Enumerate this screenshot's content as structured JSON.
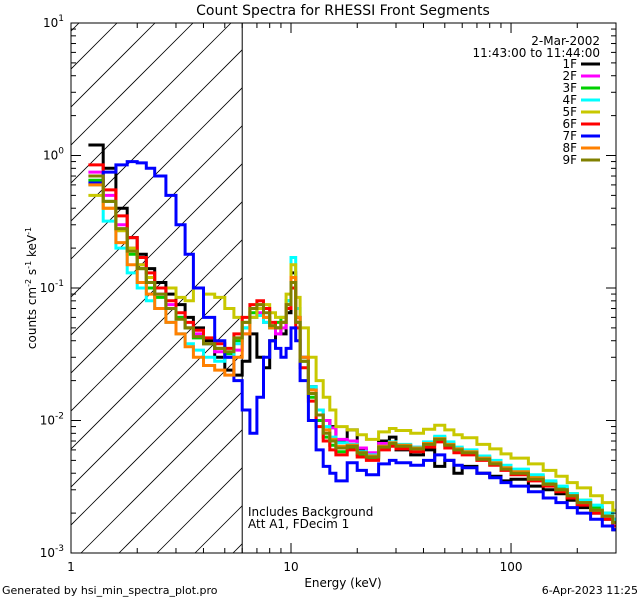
{
  "chart_data": {
    "type": "line",
    "title": "Count Spectra for RHESSI Front Segments",
    "xlabel": "Energy (keV)",
    "ylabel_main": "counts cm",
    "ylabel_exp1": "-2",
    "ylabel_mid": " s",
    "ylabel_exp2": "-1",
    "ylabel_end": " keV",
    "ylabel_exp3": "-1",
    "xscale": "log",
    "yscale": "log",
    "xlim": [
      1,
      300
    ],
    "ylim": [
      0.001,
      10
    ],
    "x_ticks": [
      {
        "value": 1,
        "label": "1"
      },
      {
        "value": 10,
        "label": "10"
      },
      {
        "value": 100,
        "label": "100"
      }
    ],
    "y_ticks": [
      {
        "value": 0.001,
        "base": "10",
        "exp": "-3"
      },
      {
        "value": 0.01,
        "base": "10",
        "exp": "-2"
      },
      {
        "value": 0.1,
        "base": "10",
        "exp": "-1"
      },
      {
        "value": 1,
        "base": "10",
        "exp": "0"
      },
      {
        "value": 10,
        "base": "10",
        "exp": "1"
      }
    ],
    "hatched_region_max_energy": 6,
    "legend_position": "top-right",
    "date": "2-Mar-2002",
    "time_range": "11:43:00 to 11:44:00",
    "annotation_lines": [
      "Includes Background",
      "Att A1, FDecim 1"
    ],
    "energy_bins": [
      1.2,
      1.4,
      1.6,
      1.8,
      2.0,
      2.2,
      2.4,
      2.7,
      3.0,
      3.3,
      3.6,
      4.0,
      4.5,
      5.0,
      5.5,
      6.0,
      6.5,
      7.0,
      7.5,
      8.0,
      8.5,
      9.0,
      9.5,
      10.0,
      10.5,
      11,
      12,
      13,
      14,
      15,
      16,
      18,
      20,
      22,
      25,
      28,
      30,
      35,
      40,
      45,
      50,
      55,
      60,
      70,
      80,
      90,
      100,
      120,
      140,
      160,
      180,
      200,
      230,
      260,
      290
    ],
    "series": [
      {
        "name": "1F",
        "color": "#000000",
        "values": [
          1.2,
          0.8,
          0.4,
          0.24,
          0.18,
          0.14,
          0.11,
          0.09,
          0.075,
          0.06,
          0.05,
          0.04,
          0.03,
          0.024,
          0.022,
          0.028,
          0.045,
          0.03,
          0.025,
          0.04,
          0.05,
          0.045,
          0.065,
          0.13,
          0.06,
          0.03,
          0.018,
          0.011,
          0.01,
          0.009,
          0.007,
          0.0085,
          0.006,
          0.0055,
          0.007,
          0.0075,
          0.006,
          0.0055,
          0.006,
          0.0045,
          0.005,
          0.004,
          0.0045,
          0.004,
          0.0038,
          0.0035,
          0.0036,
          0.0032,
          0.003,
          0.0028,
          0.0025,
          0.0022,
          0.002,
          0.0018,
          0.0015
        ]
      },
      {
        "name": "2F",
        "color": "#ff00ff",
        "values": [
          0.75,
          0.5,
          0.3,
          0.2,
          0.15,
          0.11,
          0.09,
          0.075,
          0.06,
          0.05,
          0.045,
          0.038,
          0.033,
          0.03,
          0.034,
          0.045,
          0.06,
          0.065,
          0.055,
          0.05,
          0.045,
          0.05,
          0.07,
          0.11,
          0.055,
          0.03,
          0.017,
          0.012,
          0.01,
          0.0088,
          0.0072,
          0.007,
          0.0062,
          0.0057,
          0.0067,
          0.0068,
          0.0065,
          0.0063,
          0.0068,
          0.0072,
          0.0065,
          0.006,
          0.0058,
          0.0052,
          0.0048,
          0.0044,
          0.0041,
          0.0037,
          0.0033,
          0.003,
          0.0027,
          0.0024,
          0.0021,
          0.0019,
          0.0017
        ]
      },
      {
        "name": "3F",
        "color": "#00d000",
        "values": [
          0.65,
          0.45,
          0.28,
          0.18,
          0.14,
          0.1,
          0.085,
          0.07,
          0.06,
          0.05,
          0.042,
          0.038,
          0.035,
          0.032,
          0.04,
          0.05,
          0.065,
          0.07,
          0.06,
          0.05,
          0.055,
          0.06,
          0.08,
          0.12,
          0.06,
          0.028,
          0.015,
          0.01,
          0.0075,
          0.0065,
          0.0058,
          0.0062,
          0.0055,
          0.0052,
          0.0063,
          0.0067,
          0.0064,
          0.0062,
          0.0068,
          0.0074,
          0.0067,
          0.0061,
          0.0059,
          0.0053,
          0.0049,
          0.0045,
          0.0042,
          0.0038,
          0.0034,
          0.0031,
          0.0028,
          0.0025,
          0.0022,
          0.002,
          0.0018
        ]
      },
      {
        "name": "4F",
        "color": "#00ffff",
        "values": [
          0.6,
          0.32,
          0.2,
          0.13,
          0.1,
          0.08,
          0.07,
          0.055,
          0.045,
          0.038,
          0.034,
          0.03,
          0.028,
          0.03,
          0.038,
          0.05,
          0.06,
          0.062,
          0.055,
          0.05,
          0.05,
          0.055,
          0.08,
          0.17,
          0.07,
          0.03,
          0.018,
          0.012,
          0.009,
          0.0075,
          0.0068,
          0.0066,
          0.0058,
          0.0055,
          0.0064,
          0.0069,
          0.0066,
          0.0063,
          0.0069,
          0.0076,
          0.0069,
          0.0063,
          0.006,
          0.0054,
          0.005,
          0.0046,
          0.0043,
          0.0039,
          0.0035,
          0.0032,
          0.0028,
          0.0025,
          0.0023,
          0.002,
          0.0018
        ]
      },
      {
        "name": "5F",
        "color": "#c8c800",
        "values": [
          0.5,
          0.4,
          0.27,
          0.2,
          0.15,
          0.12,
          0.1,
          0.1,
          0.085,
          0.08,
          0.1,
          0.09,
          0.085,
          0.07,
          0.06,
          0.055,
          0.06,
          0.07,
          0.075,
          0.065,
          0.06,
          0.06,
          0.09,
          0.15,
          0.085,
          0.05,
          0.03,
          0.02,
          0.015,
          0.012,
          0.009,
          0.0085,
          0.0078,
          0.0072,
          0.0082,
          0.0087,
          0.0084,
          0.008,
          0.0086,
          0.0092,
          0.0085,
          0.0078,
          0.0074,
          0.0066,
          0.0061,
          0.0056,
          0.0052,
          0.0047,
          0.0042,
          0.0038,
          0.0034,
          0.0031,
          0.0027,
          0.0024,
          0.0021
        ]
      },
      {
        "name": "6F",
        "color": "#ff0000",
        "values": [
          0.85,
          0.55,
          0.35,
          0.24,
          0.17,
          0.13,
          0.1,
          0.08,
          0.065,
          0.055,
          0.048,
          0.042,
          0.038,
          0.035,
          0.045,
          0.06,
          0.075,
          0.08,
          0.07,
          0.055,
          0.05,
          0.055,
          0.07,
          0.1,
          0.05,
          0.025,
          0.014,
          0.009,
          0.007,
          0.006,
          0.0055,
          0.006,
          0.0053,
          0.005,
          0.006,
          0.0064,
          0.0061,
          0.0058,
          0.0063,
          0.0069,
          0.0062,
          0.0057,
          0.0055,
          0.005,
          0.0046,
          0.0042,
          0.0039,
          0.0035,
          0.0032,
          0.0029,
          0.0026,
          0.0023,
          0.002,
          0.0018,
          0.0016
        ]
      },
      {
        "name": "7F",
        "color": "#0000ff",
        "values": [
          0.62,
          0.75,
          0.85,
          0.9,
          0.88,
          0.8,
          0.7,
          0.5,
          0.3,
          0.18,
          0.1,
          0.06,
          0.04,
          0.03,
          0.02,
          0.012,
          0.008,
          0.015,
          0.03,
          0.04,
          0.035,
          0.03,
          0.035,
          0.05,
          0.04,
          0.02,
          0.01,
          0.006,
          0.0045,
          0.004,
          0.0035,
          0.0048,
          0.0042,
          0.0039,
          0.0047,
          0.005,
          0.0048,
          0.0046,
          0.005,
          0.0055,
          0.005,
          0.0046,
          0.0044,
          0.004,
          0.0037,
          0.0034,
          0.0032,
          0.0029,
          0.0026,
          0.0024,
          0.0022,
          0.002,
          0.0018,
          0.0016,
          0.0015
        ]
      },
      {
        "name": "8F",
        "color": "#ff8000",
        "values": [
          0.6,
          0.4,
          0.22,
          0.15,
          0.11,
          0.09,
          0.07,
          0.055,
          0.045,
          0.036,
          0.03,
          0.026,
          0.024,
          0.022,
          0.03,
          0.045,
          0.07,
          0.075,
          0.06,
          0.05,
          0.05,
          0.055,
          0.075,
          0.12,
          0.06,
          0.03,
          0.017,
          0.011,
          0.0085,
          0.0072,
          0.0064,
          0.0065,
          0.0057,
          0.0054,
          0.0064,
          0.0068,
          0.0065,
          0.0062,
          0.0067,
          0.0073,
          0.0066,
          0.0061,
          0.0058,
          0.0052,
          0.0048,
          0.0044,
          0.0041,
          0.0037,
          0.0033,
          0.003,
          0.0027,
          0.0024,
          0.0021,
          0.0019,
          0.0017
        ]
      },
      {
        "name": "9F",
        "color": "#808000",
        "values": [
          0.7,
          0.45,
          0.28,
          0.19,
          0.14,
          0.11,
          0.09,
          0.07,
          0.058,
          0.05,
          0.043,
          0.038,
          0.035,
          0.033,
          0.042,
          0.055,
          0.07,
          0.075,
          0.065,
          0.052,
          0.05,
          0.055,
          0.075,
          0.11,
          0.055,
          0.028,
          0.016,
          0.011,
          0.008,
          0.007,
          0.0062,
          0.0064,
          0.0057,
          0.0053,
          0.0063,
          0.0067,
          0.0064,
          0.0061,
          0.0066,
          0.0072,
          0.0065,
          0.006,
          0.0057,
          0.0051,
          0.0047,
          0.0043,
          0.004,
          0.0036,
          0.0033,
          0.003,
          0.0027,
          0.0024,
          0.0021,
          0.0019,
          0.0017
        ]
      }
    ]
  },
  "footer": {
    "generated_by": "Generated by hsi_min_spectra_plot.pro",
    "timestamp": "6-Apr-2023 11:25"
  }
}
